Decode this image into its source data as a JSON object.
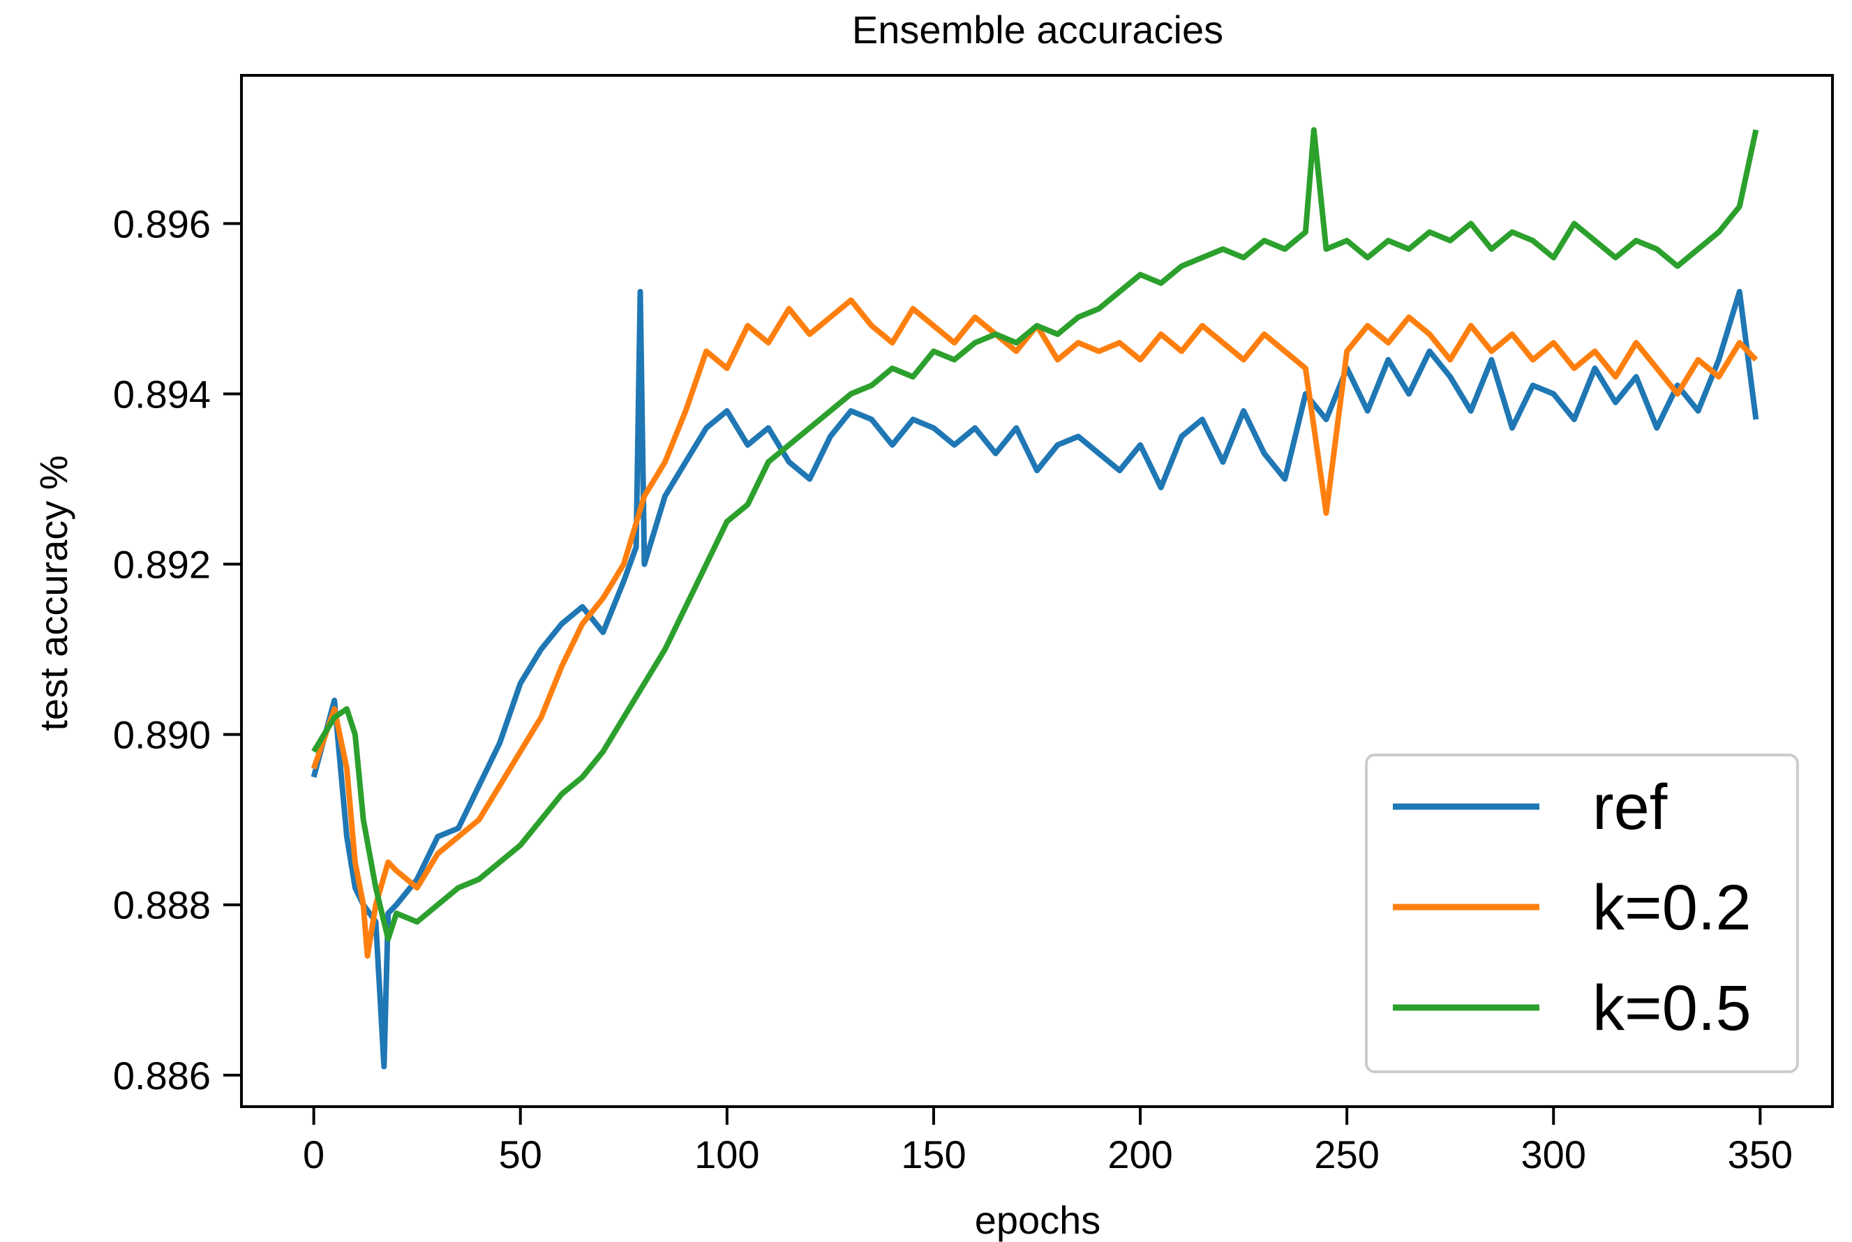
{
  "chart_data": {
    "type": "line",
    "title": "Ensemble accuracies",
    "xlabel": "epochs",
    "ylabel": "test accuracy %",
    "xlim": [
      -17.5,
      367.5
    ],
    "ylim": [
      0.88563,
      0.89774
    ],
    "xticks": [
      0,
      50,
      100,
      150,
      200,
      250,
      300,
      350
    ],
    "xtick_labels": [
      "0",
      "50",
      "100",
      "150",
      "200",
      "250",
      "300",
      "350"
    ],
    "yticks": [
      0.886,
      0.888,
      0.89,
      0.892,
      0.894,
      0.896
    ],
    "ytick_labels": [
      "0.886",
      "0.888",
      "0.890",
      "0.892",
      "0.894",
      "0.896"
    ],
    "grid": false,
    "legend_position": "lower-right",
    "series": [
      {
        "name": "ref",
        "color": "#1f77b4",
        "x": [
          0,
          5,
          8,
          10,
          12,
          15,
          17,
          18,
          20,
          25,
          30,
          35,
          40,
          45,
          50,
          55,
          60,
          65,
          70,
          75,
          78,
          79,
          80,
          85,
          90,
          95,
          100,
          105,
          110,
          115,
          120,
          125,
          130,
          135,
          140,
          145,
          150,
          155,
          160,
          165,
          170,
          175,
          180,
          185,
          190,
          195,
          200,
          205,
          210,
          215,
          220,
          225,
          230,
          235,
          240,
          245,
          250,
          255,
          260,
          265,
          270,
          275,
          280,
          285,
          290,
          295,
          300,
          305,
          310,
          315,
          320,
          325,
          330,
          335,
          340,
          345,
          349
        ],
        "y": [
          0.8895,
          0.8904,
          0.8888,
          0.8882,
          0.888,
          0.8878,
          0.8861,
          0.8879,
          0.888,
          0.8883,
          0.8888,
          0.8889,
          0.8894,
          0.8899,
          0.8906,
          0.891,
          0.8913,
          0.8915,
          0.8912,
          0.8918,
          0.8922,
          0.8952,
          0.892,
          0.8928,
          0.8932,
          0.8936,
          0.8938,
          0.8934,
          0.8936,
          0.8932,
          0.893,
          0.8935,
          0.8938,
          0.8937,
          0.8934,
          0.8937,
          0.8936,
          0.8934,
          0.8936,
          0.8933,
          0.8936,
          0.8931,
          0.8934,
          0.8935,
          0.8933,
          0.8931,
          0.8934,
          0.8929,
          0.8935,
          0.8937,
          0.8932,
          0.8938,
          0.8933,
          0.893,
          0.894,
          0.8937,
          0.8943,
          0.8938,
          0.8944,
          0.894,
          0.8945,
          0.8942,
          0.8938,
          0.8944,
          0.8936,
          0.8941,
          0.894,
          0.8937,
          0.8943,
          0.8939,
          0.8942,
          0.8936,
          0.8941,
          0.8938,
          0.8944,
          0.8952,
          0.8937
        ]
      },
      {
        "name": "k=0.2",
        "color": "#ff7f0e",
        "x": [
          0,
          5,
          8,
          10,
          12,
          13,
          15,
          18,
          20,
          25,
          30,
          35,
          40,
          45,
          50,
          55,
          60,
          65,
          70,
          75,
          80,
          85,
          90,
          95,
          100,
          105,
          110,
          115,
          120,
          125,
          130,
          135,
          140,
          145,
          150,
          155,
          160,
          165,
          170,
          175,
          180,
          185,
          190,
          195,
          200,
          205,
          210,
          215,
          220,
          225,
          230,
          235,
          240,
          245,
          250,
          255,
          260,
          265,
          270,
          275,
          280,
          285,
          290,
          295,
          300,
          305,
          310,
          315,
          320,
          325,
          330,
          335,
          340,
          345,
          349
        ],
        "y": [
          0.8896,
          0.8903,
          0.8896,
          0.8885,
          0.888,
          0.8874,
          0.888,
          0.8885,
          0.8884,
          0.8882,
          0.8886,
          0.8888,
          0.889,
          0.8894,
          0.8898,
          0.8902,
          0.8908,
          0.8913,
          0.8916,
          0.892,
          0.8928,
          0.8932,
          0.8938,
          0.8945,
          0.8943,
          0.8948,
          0.8946,
          0.895,
          0.8947,
          0.8949,
          0.8951,
          0.8948,
          0.8946,
          0.895,
          0.8948,
          0.8946,
          0.8949,
          0.8947,
          0.8945,
          0.8948,
          0.8944,
          0.8946,
          0.8945,
          0.8946,
          0.8944,
          0.8947,
          0.8945,
          0.8948,
          0.8946,
          0.8944,
          0.8947,
          0.8945,
          0.8943,
          0.8926,
          0.8945,
          0.8948,
          0.8946,
          0.8949,
          0.8947,
          0.8944,
          0.8948,
          0.8945,
          0.8947,
          0.8944,
          0.8946,
          0.8943,
          0.8945,
          0.8942,
          0.8946,
          0.8943,
          0.894,
          0.8944,
          0.8942,
          0.8946,
          0.8944
        ]
      },
      {
        "name": "k=0.5",
        "color": "#2ca02c",
        "x": [
          0,
          5,
          8,
          10,
          12,
          15,
          18,
          20,
          25,
          30,
          35,
          40,
          45,
          50,
          55,
          60,
          65,
          70,
          75,
          80,
          85,
          90,
          95,
          100,
          105,
          110,
          115,
          120,
          125,
          130,
          135,
          140,
          145,
          150,
          155,
          160,
          165,
          170,
          175,
          180,
          185,
          190,
          195,
          200,
          205,
          210,
          215,
          220,
          225,
          230,
          235,
          240,
          242,
          245,
          250,
          255,
          260,
          265,
          270,
          275,
          280,
          285,
          290,
          295,
          300,
          305,
          310,
          315,
          320,
          325,
          330,
          335,
          340,
          345,
          349
        ],
        "y": [
          0.8898,
          0.8902,
          0.8903,
          0.89,
          0.889,
          0.8882,
          0.8876,
          0.8879,
          0.8878,
          0.888,
          0.8882,
          0.8883,
          0.8885,
          0.8887,
          0.889,
          0.8893,
          0.8895,
          0.8898,
          0.8902,
          0.8906,
          0.891,
          0.8915,
          0.892,
          0.8925,
          0.8927,
          0.8932,
          0.8934,
          0.8936,
          0.8938,
          0.894,
          0.8941,
          0.8943,
          0.8942,
          0.8945,
          0.8944,
          0.8946,
          0.8947,
          0.8946,
          0.8948,
          0.8947,
          0.8949,
          0.895,
          0.8952,
          0.8954,
          0.8953,
          0.8955,
          0.8956,
          0.8957,
          0.8956,
          0.8958,
          0.8957,
          0.8959,
          0.8971,
          0.8957,
          0.8958,
          0.8956,
          0.8958,
          0.8957,
          0.8959,
          0.8958,
          0.896,
          0.8957,
          0.8959,
          0.8958,
          0.8956,
          0.896,
          0.8958,
          0.8956,
          0.8958,
          0.8957,
          0.8955,
          0.8957,
          0.8959,
          0.8962,
          0.8971
        ]
      }
    ]
  }
}
